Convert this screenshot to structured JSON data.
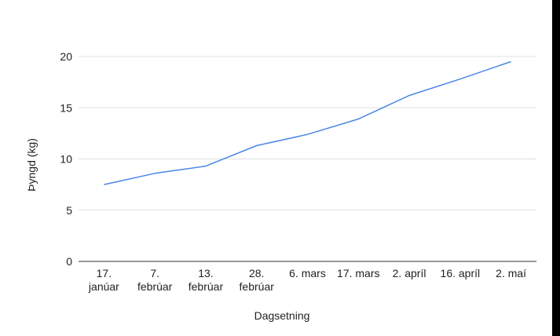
{
  "chart_data": {
    "type": "line",
    "title": "",
    "xlabel": "Dagsetning",
    "ylabel": "Þyngd (kg)",
    "categories": [
      [
        "17.",
        "janúar"
      ],
      [
        "7.",
        "febrúar"
      ],
      [
        "13.",
        "febrúar"
      ],
      [
        "28.",
        "febrúar"
      ],
      [
        "6. mars"
      ],
      [
        "17. mars"
      ],
      [
        "2. apríl"
      ],
      [
        "16. apríl"
      ],
      [
        "2. maí"
      ]
    ],
    "series": [
      {
        "values": [
          7.5,
          8.6,
          9.3,
          11.3,
          12.4,
          13.9,
          16.2,
          17.8,
          19.5
        ]
      }
    ],
    "ylim": [
      0,
      20
    ],
    "yticks": [
      0,
      5,
      10,
      15,
      20
    ],
    "grid": true,
    "legend": "none",
    "colors": {
      "line": "#4a86e8",
      "grid": "#e0e0e0",
      "axis": "#333333",
      "text": "#222222",
      "background": "#ffffff",
      "frame": "#000000"
    }
  }
}
